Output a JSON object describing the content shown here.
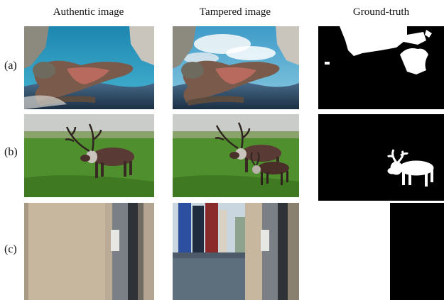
{
  "columns": {
    "authentic": "Authentic image",
    "tampered": "Tampered image",
    "ground_truth": "Ground-truth"
  },
  "rows": [
    {
      "label": "(a)",
      "content": "iguana"
    },
    {
      "label": "(b)",
      "content": "reindeer"
    },
    {
      "label": "(c)",
      "content": "door"
    }
  ],
  "colors": {
    "mask_fg": "#ffffff",
    "mask_bg": "#000000",
    "grass": "#4f8f2e",
    "sky": "#2a90b8"
  }
}
